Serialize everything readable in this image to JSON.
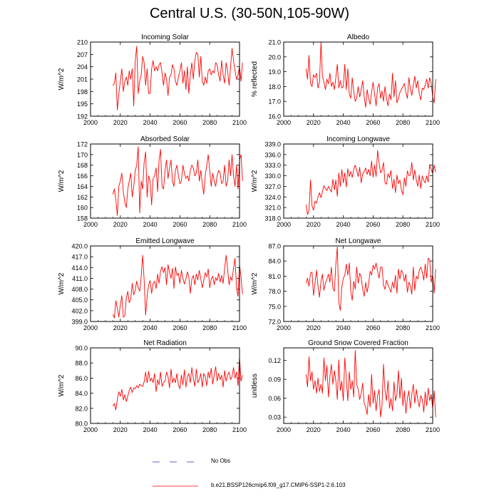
{
  "title": "Central U.S. (30-50N,105-90W)",
  "legend": {
    "obs_label": "No Obs",
    "model_label": "b.e21.BSSP126cmip6.f09_g17.CMIP6-SSP1-2.6.103",
    "obs_color": "#6a5acd",
    "model_color": "#ff0000"
  },
  "chart_data": [
    {
      "type": "line",
      "title": "Incoming Solar",
      "xlabel": "",
      "ylabel": "W/m^2",
      "xlim": [
        2000,
        2100
      ],
      "ylim": [
        192,
        210
      ],
      "xticks": [
        "2000",
        "2020",
        "2040",
        "2060",
        "2080",
        "2100"
      ],
      "yticks": [
        "192",
        "195",
        "198",
        "201",
        "204",
        "207",
        "210"
      ],
      "series": [
        {
          "name": "b.e21.BSSP126cmip6.f09_g17.CMIP6-SSP1-2.6.103",
          "color": "#ff0000",
          "x_start": 2015,
          "values": [
            199.5,
            200,
            202.5,
            193.5,
            197.5,
            200.5,
            203.5,
            198,
            200.5,
            201.5,
            199.5,
            203,
            201,
            203.5,
            194.5,
            205.5,
            209,
            197.5,
            200.5,
            202,
            206.5,
            205,
            199.5,
            203.5,
            197.5,
            197.5,
            203.5,
            205.5,
            203,
            204,
            203,
            204.5,
            205,
            202.5,
            199.5,
            202.5,
            201,
            197,
            201.5,
            202,
            204.5,
            203.5,
            200.5,
            199.5,
            201.5,
            203,
            205,
            200,
            203,
            198.5,
            204,
            197.5,
            202,
            205,
            201,
            205.5,
            207.5,
            207,
            201.5,
            206.5,
            200.5,
            199.5,
            201.5,
            200,
            203,
            203.5,
            202,
            203,
            202.5,
            205,
            204.5,
            202,
            200.5,
            205.5,
            202,
            200,
            205,
            203,
            199.5,
            204,
            208.5,
            205.5,
            203,
            201,
            202,
            204,
            200.5,
            205
          ]
        }
      ]
    },
    {
      "type": "line",
      "title": "Albedo",
      "xlabel": "",
      "ylabel": "% reflected",
      "xlim": [
        2000,
        2100
      ],
      "ylim": [
        16.0,
        21.0
      ],
      "xticks": [
        "2000",
        "2020",
        "2040",
        "2060",
        "2080",
        "2100"
      ],
      "yticks": [
        "16.0",
        "17.0",
        "18.0",
        "19.0",
        "20.0",
        "21.0"
      ],
      "series": [
        {
          "name": "b.e21.BSSP126cmip6.f09_g17.CMIP6-SSP1-2.6.103",
          "color": "#ff0000",
          "x_start": 2015,
          "values": [
            19.2,
            18.5,
            20.1,
            18.2,
            18.0,
            18.8,
            18.6,
            18.9,
            17.9,
            18.3,
            21.0,
            18.7,
            18.3,
            17.8,
            18.5,
            18.2,
            18.9,
            18.0,
            18.3,
            17.8,
            18.6,
            19.5,
            17.9,
            18.4,
            17.9,
            18.0,
            19.5,
            17.8,
            19.2,
            17.5,
            17.2,
            18.6,
            17.7,
            17.0,
            17.2,
            18.0,
            17.3,
            17.8,
            18.4,
            17.3,
            16.6,
            17.8,
            17.2,
            16.8,
            17.6,
            18.3,
            17.5,
            16.7,
            17.9,
            18.2,
            17.2,
            17.7,
            17.0,
            18.0,
            17.2,
            16.7,
            17.5,
            17.1,
            18.9,
            17.3,
            18.4,
            16.9,
            17.2,
            17.6,
            17.8,
            18.0,
            18.2,
            17.6,
            17.2,
            18.6,
            17.9,
            17.4,
            18.1,
            18.7,
            17.9,
            18.4,
            17.5,
            17.1,
            17.9,
            17.8,
            18.1,
            18.5,
            17.9,
            18.6,
            18.2,
            17.3,
            16.9,
            18.5
          ]
        }
      ]
    },
    {
      "type": "line",
      "title": "Absorbed Solar",
      "xlabel": "",
      "ylabel": "W/m^2",
      "xlim": [
        2000,
        2100
      ],
      "ylim": [
        158,
        172
      ],
      "xticks": [
        "2000",
        "2020",
        "2040",
        "2060",
        "2080",
        "2100"
      ],
      "yticks": [
        "158",
        "160",
        "162",
        "164",
        "166",
        "168",
        "170",
        "172"
      ],
      "series": [
        {
          "name": "b.e21.BSSP126cmip6.f09_g17.CMIP6-SSP1-2.6.103",
          "color": "#ff0000",
          "x_start": 2015,
          "values": [
            162.5,
            163.5,
            161.5,
            158.5,
            164,
            165,
            166.5,
            163,
            161,
            160,
            163.5,
            165,
            166.5,
            162,
            164,
            167,
            168,
            171.5,
            159,
            165,
            163.5,
            168.5,
            170.5,
            162,
            166,
            165,
            160.5,
            165.5,
            166,
            167.5,
            163,
            169,
            171,
            164,
            163.5,
            167,
            169,
            165.5,
            167.5,
            169,
            165,
            164,
            167,
            168,
            166,
            164.5,
            165,
            168,
            166.5,
            165.5,
            166,
            165,
            167,
            168,
            167.5,
            166,
            166.5,
            169,
            165,
            167,
            164.5,
            162.5,
            166,
            168,
            170,
            167,
            164,
            166.5,
            165,
            164,
            166,
            167,
            166.5,
            164.5,
            165,
            168,
            164,
            165,
            169,
            166,
            170,
            166,
            164,
            168,
            163.5,
            169,
            170,
            165
          ]
        }
      ]
    },
    {
      "type": "line",
      "title": "Incoming Longwave",
      "xlabel": "",
      "ylabel": "W/m^2",
      "xlim": [
        2000,
        2100
      ],
      "ylim": [
        318.0,
        339.0
      ],
      "xticks": [
        "2000",
        "2020",
        "2040",
        "2060",
        "2080",
        "2100"
      ],
      "yticks": [
        "318.0",
        "321.0",
        "324.0",
        "327.0",
        "330.0",
        "333.0",
        "336.0",
        "339.0"
      ],
      "series": [
        {
          "name": "b.e21.BSSP126cmip6.f09_g17.CMIP6-SSP1-2.6.103",
          "color": "#ff0000",
          "x_start": 2015,
          "values": [
            321.8,
            319.0,
            320.2,
            328.8,
            321.5,
            320.2,
            322.8,
            322.2,
            324.0,
            325.2,
            323.8,
            325.5,
            327.2,
            326.4,
            325.8,
            327.0,
            326.2,
            325.4,
            329.0,
            326.0,
            328.8,
            324.2,
            330.8,
            327.0,
            331.8,
            328.0,
            330.8,
            326.8,
            332.0,
            329.8,
            331.2,
            329.5,
            331.8,
            333.0,
            331.5,
            329.8,
            332.4,
            328.0,
            330.5,
            331.2,
            332.2,
            330.4,
            331.8,
            330.0,
            334.2,
            329.6,
            333.0,
            329.8,
            337.2,
            333.6,
            330.8,
            331.5,
            333.8,
            328.0,
            327.6,
            330.6,
            329.4,
            331.5,
            326.4,
            329.0,
            325.2,
            330.2,
            327.8,
            328.8,
            326.0,
            324.6,
            329.4,
            327.0,
            331.4,
            330.0,
            330.2,
            333.8,
            328.8,
            331.6,
            328.8,
            327.0,
            330.2,
            326.4,
            330.0,
            328.6,
            328.0,
            330.0,
            328.2,
            333.2,
            331.8,
            330.6,
            333.0,
            331.0
          ]
        }
      ]
    },
    {
      "type": "line",
      "title": "Emitted Longwave",
      "xlabel": "",
      "ylabel": "W/m^2",
      "xlim": [
        2000,
        2100
      ],
      "ylim": [
        399.0,
        420.0
      ],
      "xticks": [
        "2000",
        "2020",
        "2040",
        "2060",
        "2080",
        "2100"
      ],
      "yticks": [
        "399.0",
        "402.0",
        "405.0",
        "408.0",
        "411.0",
        "414.0",
        "417.0",
        "420.0"
      ],
      "series": [
        {
          "name": "b.e21.BSSP126cmip6.f09_g17.CMIP6-SSP1-2.6.103",
          "color": "#ff0000",
          "x_start": 2015,
          "values": [
            401.0,
            400.0,
            404.8,
            402.6,
            400.2,
            403.6,
            406.2,
            400.2,
            400.6,
            405.6,
            407.4,
            404.2,
            405.2,
            409.6,
            406.4,
            407.8,
            410.2,
            408.4,
            407.4,
            411.6,
            417.4,
            410.6,
            400.8,
            406.0,
            409.2,
            410.4,
            406.8,
            409.6,
            410.2,
            408.2,
            412.2,
            409.6,
            413.0,
            414.2,
            412.6,
            414.0,
            409.2,
            414.8,
            412.6,
            411.0,
            413.8,
            408.2,
            414.2,
            411.8,
            412.4,
            409.6,
            413.2,
            411.0,
            409.4,
            410.8,
            412.8,
            411.4,
            406.8,
            410.8,
            411.8,
            409.2,
            412.2,
            410.6,
            413.2,
            410.8,
            408.4,
            410.4,
            412.6,
            411.4,
            413.6,
            408.4,
            410.8,
            411.6,
            409.2,
            411.2,
            410.4,
            412.4,
            410.0,
            411.8,
            409.6,
            413.8,
            417.4,
            413.6,
            409.2,
            411.4,
            410.4,
            413.8,
            416.6,
            408.4,
            406.0,
            414.8,
            411.4,
            406.6
          ]
        }
      ]
    },
    {
      "type": "line",
      "title": "Net Longwave",
      "xlabel": "",
      "ylabel": "W/m^2",
      "xlim": [
        2000,
        2100
      ],
      "ylim": [
        72.0,
        87.0
      ],
      "xticks": [
        "2000",
        "2020",
        "2040",
        "2060",
        "2080",
        "2100"
      ],
      "yticks": [
        "72.0",
        "75.0",
        "78.0",
        "81.0",
        "84.0",
        "87.0"
      ],
      "series": [
        {
          "name": "b.e21.BSSP126cmip6.f09_g17.CMIP6-SSP1-2.6.103",
          "color": "#ff0000",
          "x_start": 2015,
          "values": [
            79.6,
            80.6,
            79.0,
            81.6,
            81.8,
            77.2,
            79.6,
            82.2,
            79.0,
            76.8,
            80.0,
            81.4,
            78.2,
            79.6,
            80.4,
            81.4,
            79.8,
            82.8,
            78.6,
            78.0,
            83.4,
            86.8,
            75.8,
            74.2,
            78.8,
            80.6,
            81.2,
            83.4,
            81.2,
            83.6,
            77.8,
            76.2,
            80.0,
            78.4,
            82.8,
            79.6,
            81.6,
            80.8,
            78.4,
            77.0,
            79.8,
            77.8,
            79.4,
            82.0,
            81.2,
            83.2,
            82.4,
            83.6,
            82.0,
            80.6,
            82.8,
            82.8,
            79.2,
            78.4,
            80.2,
            79.2,
            78.6,
            77.8,
            79.8,
            78.6,
            81.2,
            77.6,
            82.4,
            80.4,
            82.2,
            81.6,
            80.0,
            81.4,
            77.8,
            79.8,
            79.2,
            77.4,
            82.8,
            78.2,
            81.0,
            80.4,
            82.2,
            82.8,
            81.8,
            80.2,
            83.4,
            80.6,
            84.6,
            84.2,
            79.8,
            81.2,
            77.6,
            82.4
          ]
        }
      ]
    },
    {
      "type": "line",
      "title": "Net Radiation",
      "xlabel": "",
      "ylabel": "W/m^2",
      "xlim": [
        2000,
        2100
      ],
      "ylim": [
        80.0,
        90.0
      ],
      "xticks": [
        "2000",
        "2020",
        "2040",
        "2060",
        "2080",
        "2100"
      ],
      "yticks": [
        "80.0",
        "82.0",
        "84.0",
        "86.0",
        "88.0",
        "90.0"
      ],
      "series": [
        {
          "name": "b.e21.BSSP126cmip6.f09_g17.CMIP6-SSP1-2.6.103",
          "color": "#ff0000",
          "x_start": 2015,
          "values": [
            82.3,
            82.6,
            81.8,
            83.2,
            84.2,
            83.6,
            84.5,
            83.1,
            83.8,
            82.9,
            83.6,
            84.4,
            84.8,
            84.1,
            84.7,
            84.6,
            85.0,
            84.7,
            85.2,
            85.0,
            84.9,
            85.5,
            86.8,
            85.4,
            86.9,
            85.6,
            86.0,
            85.4,
            86.6,
            84.2,
            85.8,
            85.1,
            86.8,
            84.9,
            85.4,
            85.6,
            86.8,
            86.2,
            84.7,
            87.2,
            85.4,
            86.0,
            85.4,
            86.6,
            85.1,
            84.6,
            86.4,
            85.1,
            87.1,
            84.8,
            86.2,
            86.6,
            85.4,
            87.4,
            86.0,
            84.9,
            87.2,
            85.4,
            85.8,
            86.6,
            84.8,
            86.6,
            86.2,
            85.0,
            86.8,
            86.0,
            87.3,
            85.2,
            86.4,
            87.5,
            85.6,
            86.6,
            85.8,
            86.4,
            84.8,
            87.0,
            85.6,
            86.4,
            86.8,
            85.8,
            86.2,
            87.4,
            86.0,
            86.8,
            85.0,
            88.8,
            85.6,
            86.4
          ]
        }
      ]
    },
    {
      "type": "line",
      "title": "Ground Snow Covered Fraction",
      "xlabel": "",
      "ylabel": "unitless",
      "xlim": [
        2000,
        2100
      ],
      "ylim": [
        0.02,
        0.14
      ],
      "xticks": [
        "2000",
        "2020",
        "2040",
        "2060",
        "2080",
        "2100"
      ],
      "yticks": [
        "0.03",
        "0.06",
        "0.09",
        "0.12"
      ],
      "series": [
        {
          "name": "b.e21.BSSP126cmip6.f09_g17.CMIP6-SSP1-2.6.103",
          "color": "#ff0000",
          "x_start": 2015,
          "values": [
            0.098,
            0.078,
            0.126,
            0.088,
            0.102,
            0.074,
            0.088,
            0.068,
            0.092,
            0.071,
            0.082,
            0.068,
            0.124,
            0.088,
            0.112,
            0.062,
            0.094,
            0.114,
            0.082,
            0.104,
            0.088,
            0.058,
            0.121,
            0.072,
            0.087,
            0.056,
            0.124,
            0.092,
            0.056,
            0.102,
            0.074,
            0.088,
            0.062,
            0.136,
            0.082,
            0.074,
            0.058,
            0.068,
            0.084,
            0.052,
            0.046,
            0.034,
            0.066,
            0.046,
            0.098,
            0.052,
            0.072,
            0.04,
            0.064,
            0.074,
            0.03,
            0.048,
            0.114,
            0.072,
            0.056,
            0.088,
            0.044,
            0.06,
            0.04,
            0.086,
            0.056,
            0.066,
            0.104,
            0.06,
            0.092,
            0.048,
            0.072,
            0.036,
            0.06,
            0.072,
            0.044,
            0.066,
            0.082,
            0.052,
            0.074,
            0.058,
            0.046,
            0.064,
            0.058,
            0.038,
            0.07,
            0.048,
            0.076,
            0.056,
            0.066,
            0.044,
            0.072,
            0.03
          ]
        }
      ]
    }
  ]
}
